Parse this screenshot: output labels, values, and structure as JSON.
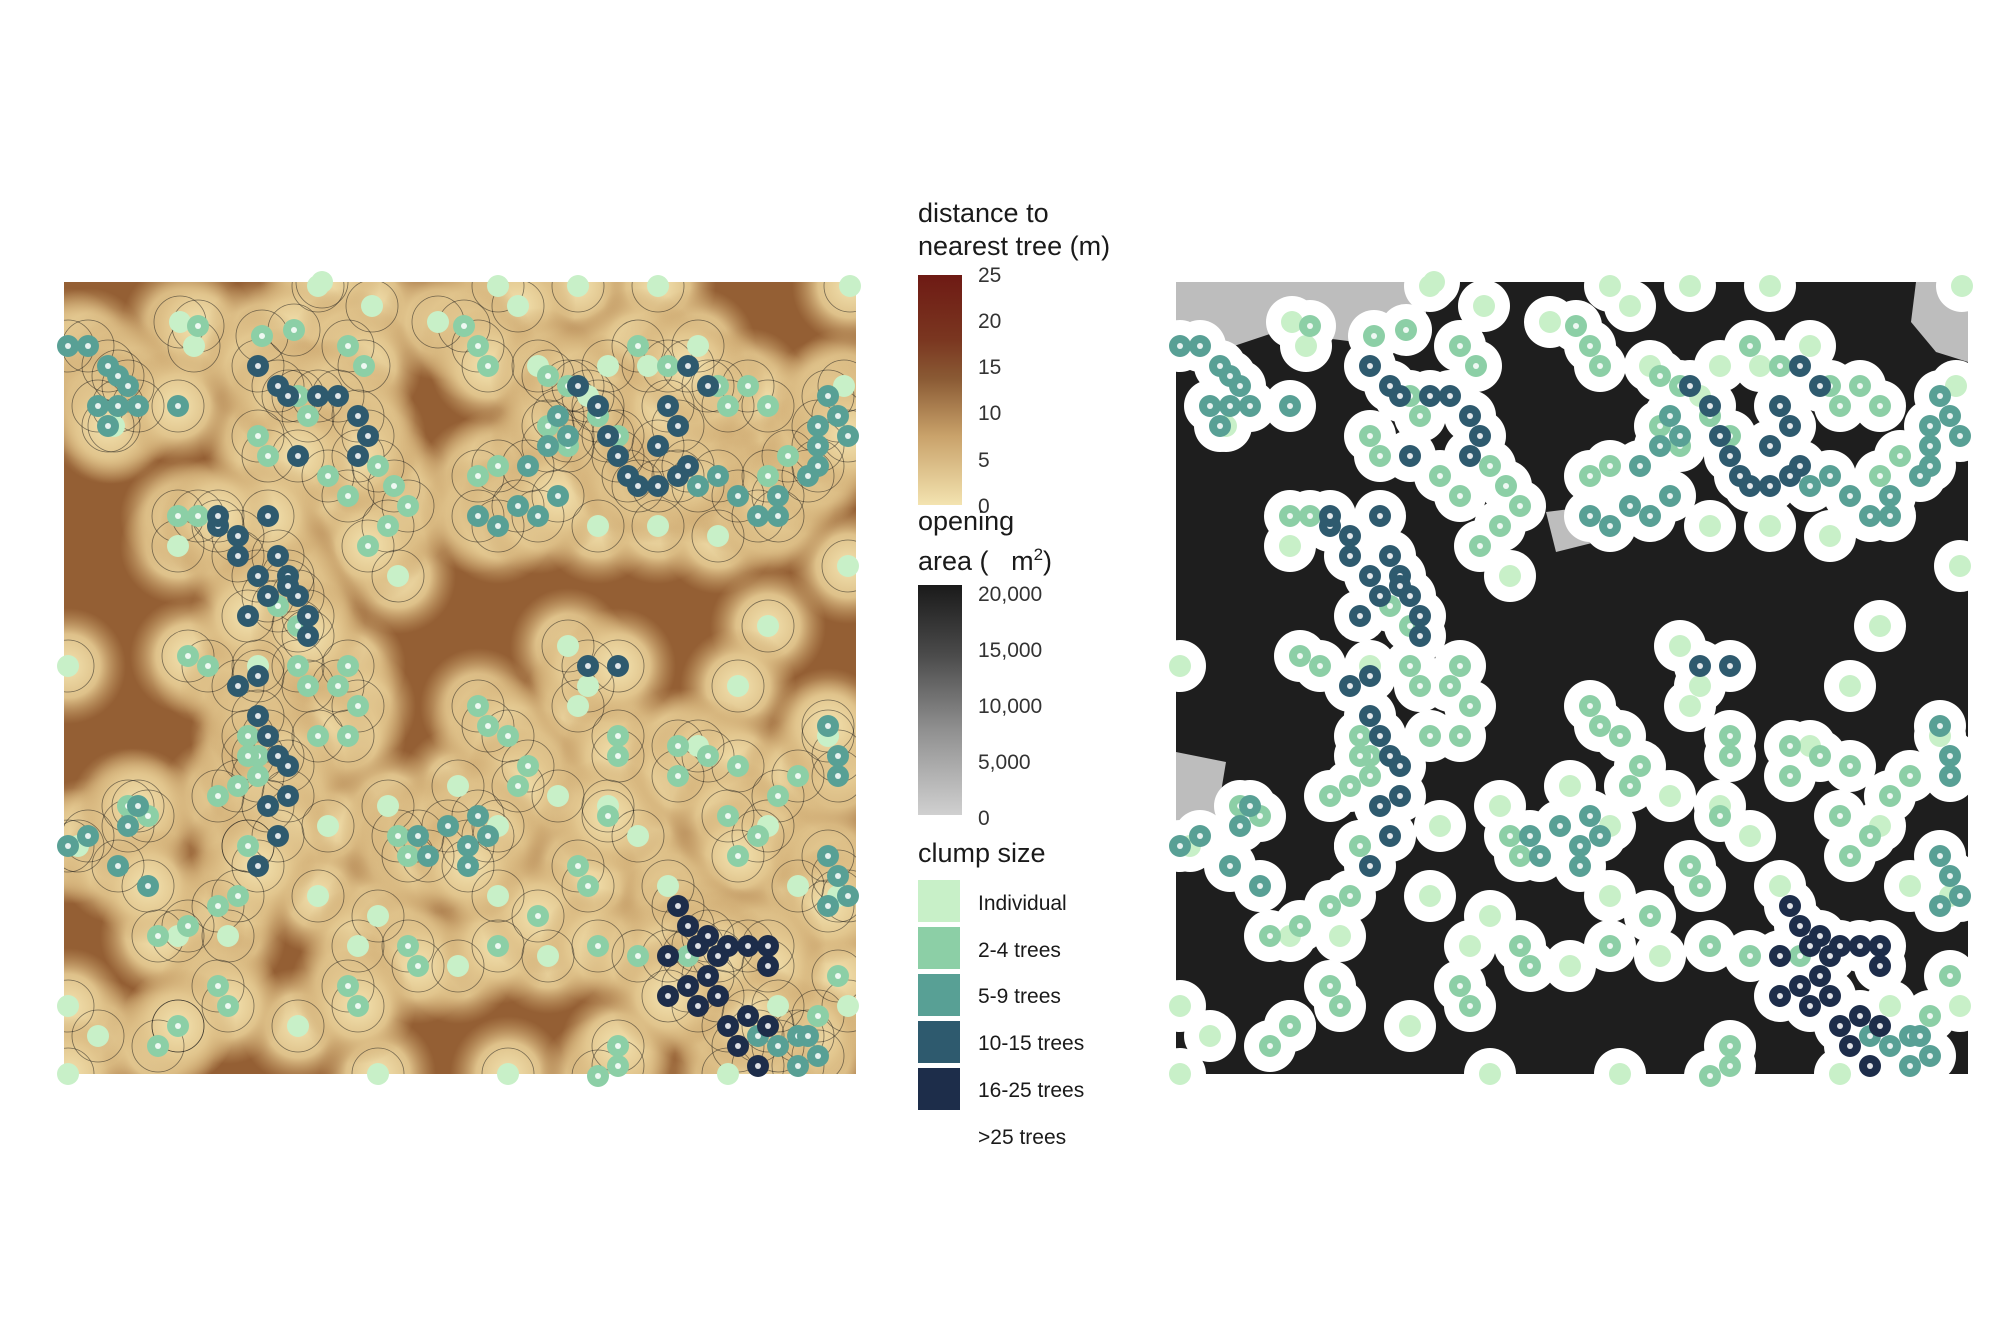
{
  "legend": {
    "distance": {
      "title_line1": "distance to",
      "title_line2": "nearest tree (m)",
      "ticks": [
        "25",
        "20",
        "15",
        "10",
        "5",
        "0"
      ],
      "range": [
        0,
        25
      ],
      "colors": [
        "#f3e3b0",
        "#c9a26a",
        "#8a4a24",
        "#6e1a14"
      ]
    },
    "opening": {
      "title_line1": "opening",
      "title_line2_prefix": "area (",
      "title_line2_unit": "m",
      "title_line2_sup": "2",
      "title_line2_suffix": ")",
      "ticks": [
        "20,000",
        "15,000",
        "10,000",
        "5,000",
        "0"
      ],
      "range": [
        0,
        20000
      ],
      "colors": [
        "#1a1a1a",
        "#d0d0d0"
      ]
    },
    "clump": {
      "title": "clump size",
      "items": [
        {
          "label": "Individual",
          "color": "#c8f0c8"
        },
        {
          "label": "2-4 trees",
          "color": "#8ccfa6"
        },
        {
          "label": "5-9 trees",
          "color": "#58a095"
        },
        {
          "label": "10-15 trees",
          "color": "#2e5a6e"
        },
        {
          "label": "16-25 trees",
          "color": "#1d2d4a"
        },
        {
          "label": ">25 trees",
          "color": "#ffffff"
        }
      ]
    }
  },
  "map_colors": {
    "distance_low": "#f3e3b0",
    "distance_high": "#6e1a14",
    "opening_fill": "#1e1e1e",
    "opening_small": "#bdbdbd",
    "tree_halo": "#ffffff",
    "contour": "#1a1a1a"
  }
}
